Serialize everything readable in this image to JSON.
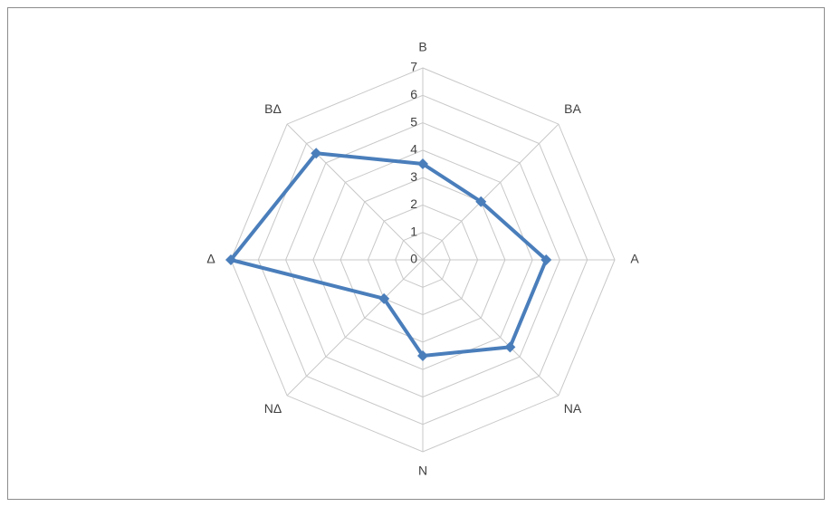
{
  "chart_data": {
    "type": "radar",
    "categories": [
      "B",
      "BA",
      "A",
      "NA",
      "N",
      "NΔ",
      "Δ",
      "BΔ"
    ],
    "series": [
      {
        "color": "#4a7ebb",
        "values": [
          3.5,
          3,
          4.5,
          4.5,
          3.5,
          2,
          7,
          5.5
        ]
      }
    ],
    "rlim": [
      0,
      7
    ],
    "rticks": [
      0,
      1,
      2,
      3,
      4,
      5,
      6,
      7
    ],
    "grid": true
  }
}
